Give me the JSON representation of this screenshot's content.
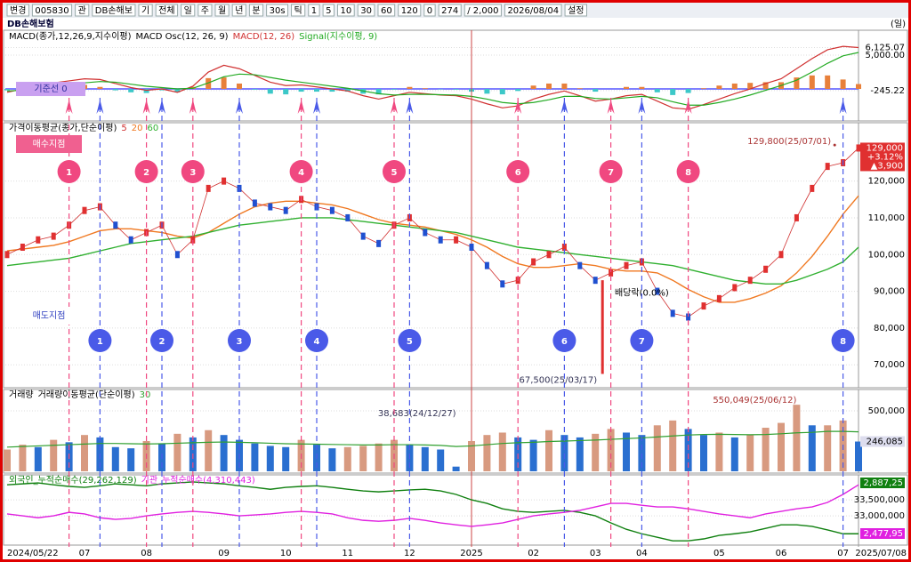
{
  "toolbar": {
    "items": [
      "변경",
      "005830",
      "관",
      "DB손해보",
      "기",
      "전체",
      "일",
      "주",
      "월",
      "년",
      "분",
      "30s",
      "틱",
      "1",
      "5",
      "10",
      "30",
      "60",
      "120",
      "0",
      "274",
      "/ 2,000",
      "2026/08/04",
      "설정"
    ]
  },
  "header": {
    "title": "DB손해보험",
    "period": "(일)"
  },
  "x_axis": {
    "categories": [
      "2024/05/22",
      null,
      null,
      null,
      null,
      "07",
      null,
      null,
      null,
      "08",
      null,
      null,
      null,
      null,
      "09",
      null,
      null,
      null,
      "10",
      null,
      null,
      null,
      "11",
      null,
      null,
      null,
      "12",
      null,
      null,
      null,
      "2025",
      null,
      null,
      null,
      "02",
      null,
      null,
      null,
      "03",
      null,
      null,
      "04",
      null,
      null,
      null,
      null,
      "05",
      null,
      null,
      null,
      "06",
      null,
      null,
      null,
      "07",
      null
    ],
    "end_label": "2025/07/08"
  },
  "signals": {
    "buy_label": "매수지점",
    "sell_label": "매도지점",
    "baseline_label": "기준선 0",
    "buy": [
      {
        "label": "1",
        "index": 4
      },
      {
        "label": "2",
        "index": 9
      },
      {
        "label": "3",
        "index": 12
      },
      {
        "label": "4",
        "index": 19
      },
      {
        "label": "5",
        "index": 25
      },
      {
        "label": "6",
        "index": 33
      },
      {
        "label": "7",
        "index": 39
      },
      {
        "label": "8",
        "index": 44
      }
    ],
    "sell": [
      {
        "label": "1",
        "index": 6
      },
      {
        "label": "2",
        "index": 10
      },
      {
        "label": "3",
        "index": 15
      },
      {
        "label": "4",
        "index": 20
      },
      {
        "label": "5",
        "index": 26
      },
      {
        "label": "6",
        "index": 36
      },
      {
        "label": "7",
        "index": 41
      },
      {
        "label": "8",
        "index": 54
      }
    ]
  },
  "chart_data": [
    {
      "type": "macd",
      "title": "MACD(종가,12,26,9,지수이평)",
      "ylim": [
        -4600,
        7240
      ],
      "yticks": [
        {
          "value": 6125.07,
          "label": "6,125.07"
        },
        {
          "value": 5000,
          "label": "5,000.00"
        },
        {
          "value": -245.22,
          "label": "-245.22"
        }
      ],
      "osc": {
        "name": "MACD Osc(12, 26, 9)",
        "color": "#e8803a",
        "neg_color": "#3cc8c8",
        "values": [
          -200,
          200,
          600,
          600,
          600,
          600,
          300,
          -200,
          -500,
          -600,
          -200,
          -500,
          300,
          1600,
          1700,
          800,
          -100,
          -700,
          -800,
          -400,
          -400,
          -400,
          -400,
          -700,
          -800,
          -100,
          300,
          100,
          -50,
          -100,
          -400,
          -700,
          -800,
          -300,
          500,
          800,
          800,
          100,
          -400,
          0,
          300,
          300,
          -500,
          -900,
          -600,
          100,
          500,
          800,
          900,
          1000,
          1000,
          1700,
          2000,
          2000,
          1400,
          725
        ]
      },
      "series": [
        {
          "name": "MACD(12, 26)",
          "color": "#d03030",
          "values": [
            -500,
            0,
            600,
            900,
            1200,
            1500,
            1400,
            800,
            200,
            -200,
            0,
            -500,
            400,
            2500,
            3500,
            3000,
            2000,
            1000,
            500,
            600,
            300,
            0,
            -300,
            -1000,
            -1500,
            -1000,
            -500,
            -700,
            -900,
            -1000,
            -1500,
            -2200,
            -2800,
            -2500,
            -1500,
            -800,
            -300,
            -1000,
            -1800,
            -1500,
            -1000,
            -800,
            -1800,
            -2800,
            -3000,
            -2300,
            -1500,
            -700,
            0,
            800,
            1500,
            3000,
            4500,
            5800,
            6300,
            6125.07
          ]
        },
        {
          "name": "Signal(지수이평, 9)",
          "color": "#22aa22",
          "values": [
            -300,
            -200,
            0,
            300,
            600,
            900,
            1100,
            1000,
            700,
            400,
            200,
            0,
            100,
            900,
            1800,
            2200,
            2100,
            1700,
            1300,
            1000,
            700,
            400,
            100,
            -300,
            -700,
            -900,
            -800,
            -800,
            -850,
            -900,
            -1100,
            -1500,
            -2000,
            -2200,
            -2000,
            -1600,
            -1100,
            -1100,
            -1400,
            -1500,
            -1300,
            -1100,
            -1300,
            -1900,
            -2400,
            -2400,
            -2000,
            -1500,
            -900,
            -200,
            500,
            1300,
            2500,
            3800,
            4900,
            5400
          ]
        }
      ]
    },
    {
      "type": "price",
      "title": "가격이동평균(종가,단순이평)",
      "ylim": [
        64000,
        135400
      ],
      "yticks": [
        {
          "value": 70000,
          "label": "70,000"
        },
        {
          "value": 80000,
          "label": "80,000"
        },
        {
          "value": 90000,
          "label": "90,000"
        },
        {
          "value": 100000,
          "label": "100,000"
        },
        {
          "value": 110000,
          "label": "110,000"
        },
        {
          "value": 120000,
          "label": "120,000"
        }
      ],
      "price_tag": {
        "value": 129000,
        "label": "129,000",
        "change": "+3.12%",
        "diff": "▲3,900"
      },
      "high": {
        "index": 53,
        "value": 129800,
        "label": "129,800(25/07/01)"
      },
      "low": {
        "index": 38,
        "value": 67500,
        "label": "67,500(25/03/17)"
      },
      "note": {
        "index": 41,
        "label": "배당락(0.0%)"
      },
      "series": [
        {
          "name": "5",
          "color": "#d03030",
          "values": [
            100000,
            102000,
            104000,
            105000,
            108000,
            112000,
            113000,
            108000,
            104000,
            106000,
            108000,
            100000,
            104000,
            118000,
            120000,
            118000,
            114000,
            113000,
            112000,
            115000,
            113000,
            112000,
            110000,
            105000,
            103000,
            108000,
            110000,
            106000,
            104000,
            104000,
            102000,
            97000,
            92000,
            93000,
            98000,
            100000,
            102000,
            97000,
            93000,
            95000,
            97000,
            98000,
            90000,
            84000,
            83000,
            86000,
            88000,
            91000,
            93000,
            96000,
            100000,
            110000,
            118000,
            124000,
            125000,
            129000
          ]
        },
        {
          "name": "20",
          "color": "#f07820",
          "values": [
            101000,
            101500,
            102000,
            102500,
            103500,
            105000,
            106500,
            107000,
            107000,
            106500,
            106000,
            105000,
            104500,
            106000,
            108500,
            111000,
            113000,
            114000,
            114500,
            114500,
            114000,
            113500,
            112500,
            111000,
            109500,
            108500,
            108000,
            107500,
            106500,
            105500,
            104000,
            102000,
            99500,
            97500,
            96500,
            96500,
            97000,
            97500,
            97000,
            96000,
            95500,
            95500,
            95000,
            93000,
            90500,
            88500,
            87000,
            87000,
            88000,
            89500,
            91500,
            95000,
            99500,
            105000,
            111000,
            116000
          ]
        },
        {
          "name": "60",
          "color": "#30b030",
          "values": [
            97000,
            97500,
            98000,
            98500,
            99000,
            100000,
            101000,
            102000,
            103000,
            103500,
            104000,
            104500,
            105000,
            106000,
            107000,
            108000,
            108500,
            109000,
            109500,
            110000,
            110000,
            110000,
            109500,
            109000,
            108500,
            108000,
            107500,
            107000,
            106500,
            106000,
            105000,
            104000,
            103000,
            102000,
            101500,
            101000,
            100500,
            100000,
            99500,
            99000,
            98500,
            98000,
            97500,
            97000,
            96000,
            95000,
            94000,
            93000,
            92500,
            92000,
            92000,
            93000,
            94500,
            96000,
            98000,
            102000
          ]
        }
      ]
    },
    {
      "type": "volume",
      "title": "거래량",
      "ylim": [
        0,
        588000
      ],
      "yticks": [
        {
          "value": 500000,
          "label": "500,000"
        }
      ],
      "tag": {
        "value": 246085,
        "label": "246,085"
      },
      "color": "#2a6fd0",
      "values": [
        180000,
        220000,
        200000,
        260000,
        240000,
        300000,
        280000,
        200000,
        190000,
        250000,
        230000,
        310000,
        280000,
        340000,
        300000,
        260000,
        230000,
        210000,
        200000,
        260000,
        220000,
        190000,
        200000,
        210000,
        230000,
        260000,
        220000,
        200000,
        180000,
        38683,
        250000,
        300000,
        320000,
        280000,
        260000,
        340000,
        300000,
        280000,
        310000,
        350000,
        320000,
        300000,
        380000,
        420000,
        350000,
        300000,
        320000,
        280000,
        300000,
        360000,
        400000,
        550049,
        380000,
        380000,
        420000,
        246085
      ],
      "high": {
        "index": 51,
        "label": "550,049(25/06/12)"
      },
      "low": {
        "index": 29,
        "label": "38,683(24/12/27)"
      },
      "ma": {
        "name": "거래량이동평균(단순이평)",
        "period": "30",
        "color": "#30a030",
        "values": [
          200000,
          205000,
          210000,
          215000,
          220000,
          225000,
          230000,
          230000,
          228000,
          226000,
          228000,
          232000,
          236000,
          240000,
          242000,
          240000,
          236000,
          232000,
          228000,
          226000,
          224000,
          222000,
          220000,
          218000,
          218000,
          220000,
          220000,
          218000,
          214000,
          205000,
          210000,
          220000,
          230000,
          236000,
          240000,
          246000,
          250000,
          254000,
          258000,
          264000,
          270000,
          276000,
          284000,
          292000,
          300000,
          304000,
          306000,
          304000,
          302000,
          304000,
          310000,
          318000,
          322000,
          330000,
          330000,
          326000
        ]
      }
    },
    {
      "type": "flow",
      "ylim": [
        32030000,
        34170000
      ],
      "yticks": [
        {
          "value": 33500000,
          "label": "33,500,000"
        },
        {
          "value": 33000000,
          "label": "33,000,000"
        }
      ],
      "tags": [
        "2,887,25",
        "2,477,95"
      ],
      "series": [
        {
          "name": "외국인_누적순매수(29,262,129)",
          "color": "#108010",
          "values": [
            33970000,
            34000000,
            34030000,
            33970000,
            33920000,
            33890000,
            33940000,
            34000000,
            33970000,
            33940000,
            34000000,
            34030000,
            34060000,
            34030000,
            34000000,
            33940000,
            33890000,
            33830000,
            33890000,
            33920000,
            33940000,
            33890000,
            33830000,
            33780000,
            33750000,
            33780000,
            33810000,
            33830000,
            33780000,
            33670000,
            33500000,
            33390000,
            33220000,
            33140000,
            33110000,
            33140000,
            33170000,
            33110000,
            33000000,
            32780000,
            32580000,
            32440000,
            32330000,
            32220000,
            32220000,
            32280000,
            32390000,
            32440000,
            32500000,
            32610000,
            32720000,
            32720000,
            32670000,
            32560000,
            32440000,
            32440000
          ]
        },
        {
          "name": "기관_누적순매수(4,310,443)",
          "color": "#e020e0",
          "values": [
            33060000,
            33000000,
            32940000,
            33000000,
            33110000,
            33060000,
            32940000,
            32890000,
            32920000,
            33000000,
            33060000,
            33110000,
            33140000,
            33110000,
            33060000,
            33000000,
            33030000,
            33060000,
            33110000,
            33140000,
            33110000,
            33060000,
            32940000,
            32860000,
            32830000,
            32860000,
            32920000,
            32860000,
            32780000,
            32720000,
            32670000,
            32720000,
            32780000,
            32890000,
            33000000,
            33060000,
            33110000,
            33170000,
            33280000,
            33390000,
            33390000,
            33330000,
            33280000,
            33280000,
            33220000,
            33140000,
            33060000,
            33000000,
            32940000,
            33060000,
            33140000,
            33220000,
            33280000,
            33420000,
            33670000,
            33970000
          ]
        }
      ]
    }
  ]
}
